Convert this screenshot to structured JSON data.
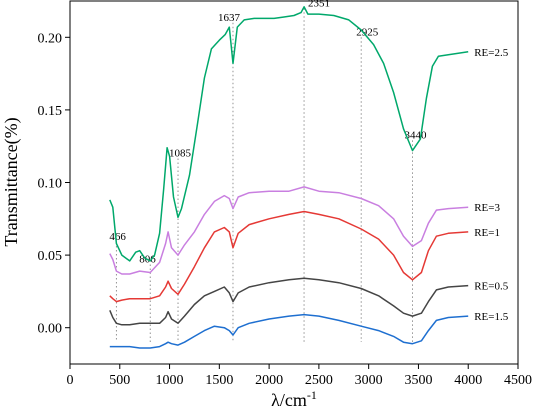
{
  "chart_data": {
    "type": "line",
    "xlabel": "λ/cm",
    "xlabel_superscript": "-1",
    "ylabel": "Transmittance(%)",
    "xlim": [
      0,
      4500
    ],
    "ylim": [
      -0.025,
      0.225
    ],
    "xticks": [
      0,
      500,
      1000,
      1500,
      2000,
      2500,
      3000,
      3500,
      4000,
      4500
    ],
    "yticks": [
      0.0,
      0.05,
      0.1,
      0.15,
      0.2
    ],
    "ytick_labels": [
      "0.00",
      "0.05",
      "0.10",
      "0.15",
      "0.20"
    ],
    "grid": false,
    "peak_markers": [
      {
        "label": "466",
        "x": 466,
        "y_top": 0.059
      },
      {
        "label": "806",
        "x": 806,
        "y_top": 0.0435
      },
      {
        "label": "1085",
        "x": 1085,
        "y_top": 0.1165
      },
      {
        "label": "1637",
        "x": 1637,
        "y_top": 0.21
      },
      {
        "label": "2351",
        "x": 2351,
        "y_top": 0.22
      },
      {
        "label": "2925",
        "x": 2925,
        "y_top": 0.2
      },
      {
        "label": "3440",
        "x": 3440,
        "y_top": 0.129
      }
    ],
    "series": [
      {
        "name": "RE=2.5",
        "color": "#00a86b",
        "points": [
          [
            400,
            0.088
          ],
          [
            430,
            0.083
          ],
          [
            466,
            0.058
          ],
          [
            520,
            0.05
          ],
          [
            600,
            0.046
          ],
          [
            660,
            0.052
          ],
          [
            700,
            0.053
          ],
          [
            750,
            0.048
          ],
          [
            806,
            0.046
          ],
          [
            850,
            0.05
          ],
          [
            900,
            0.065
          ],
          [
            940,
            0.095
          ],
          [
            975,
            0.124
          ],
          [
            1000,
            0.118
          ],
          [
            1040,
            0.09
          ],
          [
            1085,
            0.076
          ],
          [
            1120,
            0.082
          ],
          [
            1200,
            0.105
          ],
          [
            1280,
            0.14
          ],
          [
            1350,
            0.172
          ],
          [
            1420,
            0.192
          ],
          [
            1500,
            0.198
          ],
          [
            1560,
            0.202
          ],
          [
            1600,
            0.207
          ],
          [
            1637,
            0.182
          ],
          [
            1680,
            0.207
          ],
          [
            1750,
            0.212
          ],
          [
            1850,
            0.213
          ],
          [
            1950,
            0.213
          ],
          [
            2050,
            0.213
          ],
          [
            2150,
            0.214
          ],
          [
            2250,
            0.215
          ],
          [
            2320,
            0.217
          ],
          [
            2351,
            0.221
          ],
          [
            2390,
            0.216
          ],
          [
            2500,
            0.216
          ],
          [
            2650,
            0.215
          ],
          [
            2800,
            0.212
          ],
          [
            2925,
            0.205
          ],
          [
            3050,
            0.195
          ],
          [
            3150,
            0.182
          ],
          [
            3250,
            0.162
          ],
          [
            3350,
            0.137
          ],
          [
            3440,
            0.122
          ],
          [
            3520,
            0.13
          ],
          [
            3580,
            0.158
          ],
          [
            3640,
            0.18
          ],
          [
            3700,
            0.187
          ],
          [
            3800,
            0.188
          ],
          [
            3900,
            0.189
          ],
          [
            4000,
            0.19
          ]
        ]
      },
      {
        "name": "RE=3",
        "color": "#c97fe0",
        "points": [
          [
            400,
            0.051
          ],
          [
            430,
            0.047
          ],
          [
            466,
            0.039
          ],
          [
            520,
            0.037
          ],
          [
            600,
            0.037
          ],
          [
            700,
            0.039
          ],
          [
            806,
            0.038
          ],
          [
            900,
            0.045
          ],
          [
            960,
            0.058
          ],
          [
            985,
            0.066
          ],
          [
            1020,
            0.055
          ],
          [
            1085,
            0.05
          ],
          [
            1150,
            0.057
          ],
          [
            1250,
            0.066
          ],
          [
            1350,
            0.078
          ],
          [
            1450,
            0.087
          ],
          [
            1550,
            0.091
          ],
          [
            1600,
            0.089
          ],
          [
            1637,
            0.082
          ],
          [
            1690,
            0.09
          ],
          [
            1800,
            0.093
          ],
          [
            2000,
            0.094
          ],
          [
            2200,
            0.094
          ],
          [
            2351,
            0.097
          ],
          [
            2500,
            0.094
          ],
          [
            2700,
            0.093
          ],
          [
            2925,
            0.089
          ],
          [
            3100,
            0.084
          ],
          [
            3250,
            0.075
          ],
          [
            3350,
            0.063
          ],
          [
            3440,
            0.056
          ],
          [
            3530,
            0.06
          ],
          [
            3600,
            0.072
          ],
          [
            3680,
            0.081
          ],
          [
            3800,
            0.082
          ],
          [
            4000,
            0.083
          ]
        ]
      },
      {
        "name": "RE=1",
        "color": "#e53935",
        "points": [
          [
            400,
            0.022
          ],
          [
            430,
            0.02
          ],
          [
            466,
            0.018
          ],
          [
            520,
            0.019
          ],
          [
            600,
            0.02
          ],
          [
            700,
            0.02
          ],
          [
            806,
            0.02
          ],
          [
            900,
            0.022
          ],
          [
            960,
            0.028
          ],
          [
            985,
            0.032
          ],
          [
            1020,
            0.027
          ],
          [
            1085,
            0.023
          ],
          [
            1150,
            0.03
          ],
          [
            1250,
            0.042
          ],
          [
            1350,
            0.055
          ],
          [
            1450,
            0.066
          ],
          [
            1550,
            0.069
          ],
          [
            1600,
            0.066
          ],
          [
            1637,
            0.055
          ],
          [
            1690,
            0.065
          ],
          [
            1800,
            0.071
          ],
          [
            2000,
            0.075
          ],
          [
            2200,
            0.078
          ],
          [
            2351,
            0.08
          ],
          [
            2500,
            0.078
          ],
          [
            2700,
            0.075
          ],
          [
            2925,
            0.068
          ],
          [
            3100,
            0.061
          ],
          [
            3250,
            0.05
          ],
          [
            3350,
            0.038
          ],
          [
            3440,
            0.033
          ],
          [
            3530,
            0.038
          ],
          [
            3600,
            0.053
          ],
          [
            3680,
            0.063
          ],
          [
            3800,
            0.065
          ],
          [
            4000,
            0.066
          ]
        ]
      },
      {
        "name": "RE=0.5",
        "color": "#454545",
        "points": [
          [
            400,
            0.012
          ],
          [
            430,
            0.007
          ],
          [
            466,
            0.003
          ],
          [
            520,
            0.002
          ],
          [
            600,
            0.002
          ],
          [
            700,
            0.003
          ],
          [
            806,
            0.003
          ],
          [
            900,
            0.003
          ],
          [
            960,
            0.007
          ],
          [
            985,
            0.011
          ],
          [
            1020,
            0.006
          ],
          [
            1085,
            0.003
          ],
          [
            1150,
            0.008
          ],
          [
            1250,
            0.016
          ],
          [
            1350,
            0.022
          ],
          [
            1450,
            0.025
          ],
          [
            1550,
            0.028
          ],
          [
            1600,
            0.024
          ],
          [
            1637,
            0.018
          ],
          [
            1690,
            0.024
          ],
          [
            1800,
            0.028
          ],
          [
            2000,
            0.031
          ],
          [
            2200,
            0.033
          ],
          [
            2351,
            0.034
          ],
          [
            2500,
            0.033
          ],
          [
            2700,
            0.031
          ],
          [
            2925,
            0.027
          ],
          [
            3100,
            0.022
          ],
          [
            3250,
            0.015
          ],
          [
            3350,
            0.01
          ],
          [
            3440,
            0.008
          ],
          [
            3530,
            0.01
          ],
          [
            3600,
            0.018
          ],
          [
            3680,
            0.026
          ],
          [
            3800,
            0.028
          ],
          [
            4000,
            0.029
          ]
        ]
      },
      {
        "name": "RE=1.5",
        "color": "#1e6fd0",
        "points": [
          [
            400,
            -0.013
          ],
          [
            430,
            -0.013
          ],
          [
            466,
            -0.013
          ],
          [
            520,
            -0.013
          ],
          [
            600,
            -0.013
          ],
          [
            700,
            -0.014
          ],
          [
            806,
            -0.014
          ],
          [
            900,
            -0.013
          ],
          [
            960,
            -0.011
          ],
          [
            985,
            -0.01
          ],
          [
            1020,
            -0.011
          ],
          [
            1085,
            -0.012
          ],
          [
            1150,
            -0.01
          ],
          [
            1250,
            -0.006
          ],
          [
            1350,
            -0.002
          ],
          [
            1450,
            0.001
          ],
          [
            1550,
            0.0
          ],
          [
            1600,
            -0.002
          ],
          [
            1637,
            -0.005
          ],
          [
            1690,
            0.0
          ],
          [
            1800,
            0.003
          ],
          [
            2000,
            0.006
          ],
          [
            2200,
            0.008
          ],
          [
            2351,
            0.009
          ],
          [
            2500,
            0.008
          ],
          [
            2700,
            0.005
          ],
          [
            2925,
            0.001
          ],
          [
            3100,
            -0.002
          ],
          [
            3250,
            -0.006
          ],
          [
            3350,
            -0.01
          ],
          [
            3440,
            -0.011
          ],
          [
            3530,
            -0.009
          ],
          [
            3600,
            -0.002
          ],
          [
            3680,
            0.005
          ],
          [
            3800,
            0.007
          ],
          [
            4000,
            0.008
          ]
        ]
      }
    ]
  }
}
